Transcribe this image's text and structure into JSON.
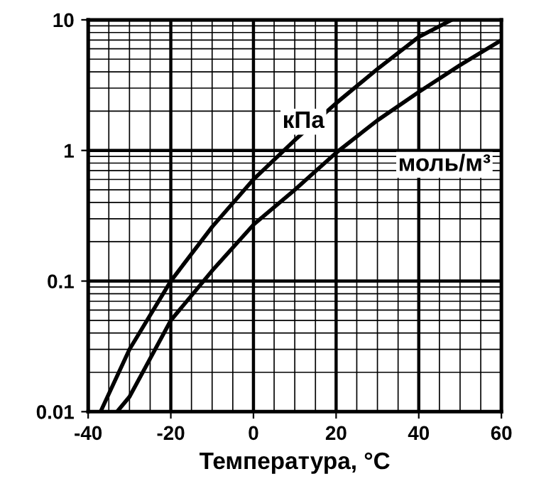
{
  "chart_data": {
    "type": "line",
    "xlabel": "Температура, °C",
    "log": "y",
    "xlim": [
      -40,
      60
    ],
    "xticks": [
      -40,
      -20,
      0,
      20,
      40,
      60
    ],
    "ylim": [
      0.01,
      10
    ],
    "yticks": [
      0.01,
      0.1,
      1,
      10
    ],
    "grid": true,
    "legend": false,
    "marker": "none",
    "line_style": "solid",
    "series": [
      {
        "name": "кПа",
        "color": "#000000",
        "x": [
          -37,
          -30,
          -20,
          -10,
          0,
          10,
          20,
          30,
          40,
          48
        ],
        "values": [
          0.01,
          0.03,
          0.1,
          0.26,
          0.6,
          1.2,
          2.3,
          4.2,
          7.4,
          10
        ]
      },
      {
        "name": "моль/м³",
        "color": "#000000",
        "x": [
          -33,
          -30,
          -20,
          -10,
          0,
          10,
          20,
          30,
          40,
          50,
          60
        ],
        "values": [
          0.01,
          0.013,
          0.05,
          0.12,
          0.27,
          0.5,
          0.96,
          1.7,
          2.8,
          4.5,
          7
        ]
      }
    ]
  }
}
